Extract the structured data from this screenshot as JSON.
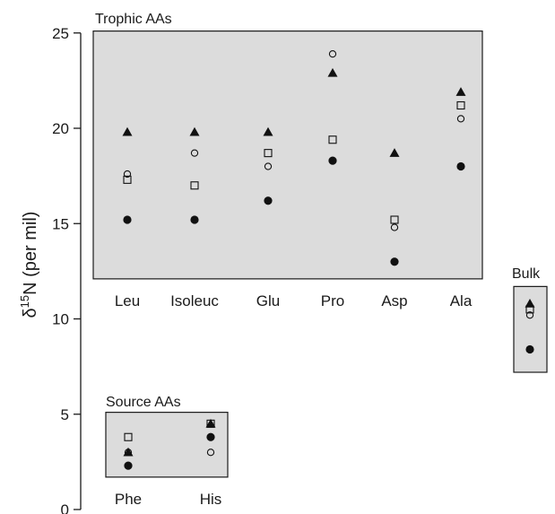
{
  "chart_data": {
    "type": "scatter",
    "ylabel_main": "δ",
    "ylabel_sup": "15",
    "ylabel_rest": "N (per mil)",
    "ylim": [
      0,
      25
    ],
    "yticks": [
      "0",
      "5",
      "10",
      "15",
      "20",
      "25"
    ],
    "grid": false,
    "legend": "none",
    "panel_fill": "#dcdcdc",
    "panels": [
      {
        "id": "trophic",
        "title": "Trophic AAs",
        "categories": [
          "Leu",
          "Isoleuc",
          "Glu",
          "Pro",
          "Asp",
          "Ala"
        ],
        "yrange": [
          12.1,
          25.1
        ],
        "series": [
          {
            "marker": "triangle",
            "values": [
              19.8,
              19.8,
              19.8,
              22.9,
              18.7,
              21.9
            ]
          },
          {
            "marker": "open-circle",
            "values": [
              17.6,
              18.7,
              18.0,
              23.9,
              14.8,
              20.5
            ]
          },
          {
            "marker": "open-square",
            "values": [
              17.3,
              17.0,
              18.7,
              19.4,
              15.2,
              21.2
            ]
          },
          {
            "marker": "filled-circle",
            "values": [
              15.2,
              15.2,
              16.2,
              18.3,
              13.0,
              18.0
            ]
          }
        ]
      },
      {
        "id": "source",
        "title": "Source AAs",
        "categories": [
          "Phe",
          "His"
        ],
        "yrange": [
          1.7,
          5.1
        ],
        "series": [
          {
            "marker": "triangle",
            "values": [
              3.0,
              4.5
            ]
          },
          {
            "marker": "open-circle",
            "values": [
              3.0,
              3.0
            ]
          },
          {
            "marker": "open-square",
            "values": [
              3.8,
              4.5
            ]
          },
          {
            "marker": "filled-circle",
            "values": [
              2.3,
              3.8
            ]
          }
        ]
      },
      {
        "id": "bulk",
        "title": "Bulk",
        "categories": [],
        "yrange": [
          7.2,
          11.7
        ],
        "series": [
          {
            "marker": "triangle",
            "values": [
              10.8
            ]
          },
          {
            "marker": "open-circle",
            "values": [
              10.2
            ]
          },
          {
            "marker": "open-square",
            "values": [
              10.5
            ]
          },
          {
            "marker": "filled-circle",
            "values": [
              8.4
            ]
          }
        ]
      }
    ]
  }
}
